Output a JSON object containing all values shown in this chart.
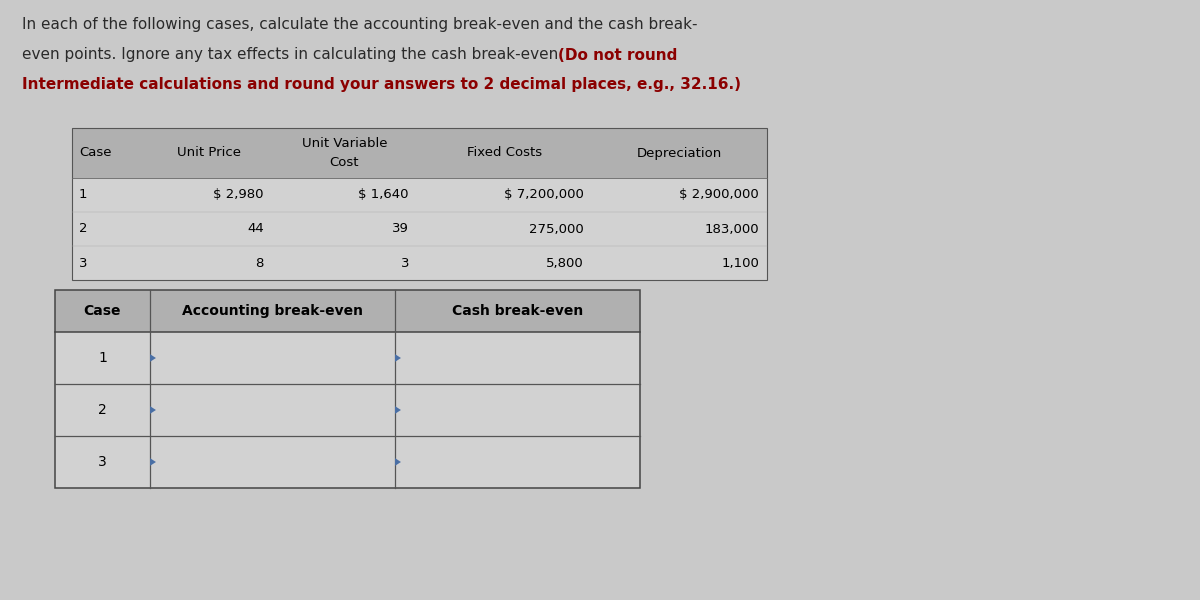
{
  "background_color": "#c9c9c9",
  "intro_normal_color": "#2a2a2a",
  "intro_bold_color": "#8b0000",
  "intro_line1": "In each of the following cases, calculate the accounting break-even and the cash break-",
  "intro_line2_normal": "even points. Ignore any tax effects in calculating the cash break-even. ",
  "intro_line2_bold": "(Do not round",
  "intro_line3": "Intermediate calculations and round your answers to 2 decimal places, e.g., 32.16.)",
  "upper_table": {
    "header_bg": "#b0b0b0",
    "row_bg": "#d2d2d2",
    "col_headers_line1": [
      "Case",
      "Unit Price",
      "Unit Variable",
      "Fixed Costs",
      "Depreciation"
    ],
    "col_headers_line2": [
      "",
      "",
      "Cost",
      "",
      ""
    ],
    "rows": [
      [
        "1",
        "$ 2,980",
        "$ 1,640",
        "$ 7,200,000",
        "$ 2,900,000"
      ],
      [
        "2",
        "44",
        "39",
        "275,000",
        "183,000"
      ],
      [
        "3",
        "8",
        "3",
        "5,800",
        "1,100"
      ]
    ]
  },
  "lower_table": {
    "header_bg": "#b0b0b0",
    "row_bg": "#d2d2d2",
    "col_headers": [
      "Case",
      "Accounting break-even",
      "Cash break-even"
    ],
    "rows": [
      [
        "1",
        "",
        ""
      ],
      [
        "2",
        "",
        ""
      ],
      [
        "3",
        "",
        ""
      ]
    ],
    "triangle_color": "#4a6fa5"
  }
}
